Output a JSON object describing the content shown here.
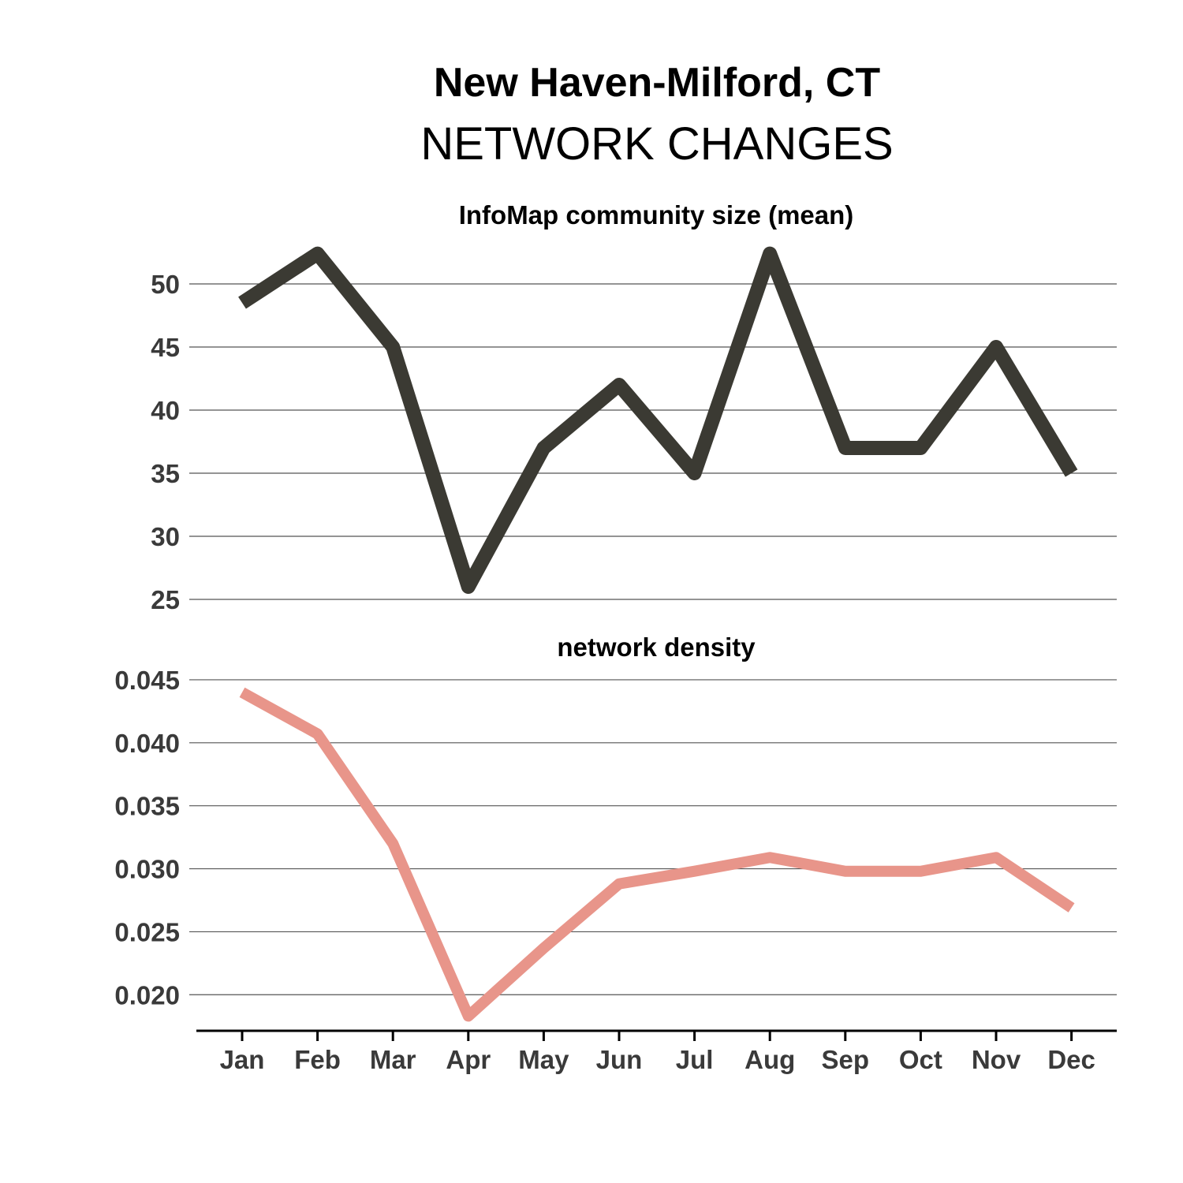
{
  "title": "New Haven-Milford, CT",
  "subtitle": "NETWORK CHANGES",
  "colors": {
    "community_line": "#3b3a33",
    "density_line": "#e8958a"
  },
  "chart_data": [
    {
      "type": "line",
      "title": "InfoMap community size (mean)",
      "categories": [
        "Jan",
        "Feb",
        "Mar",
        "Apr",
        "May",
        "Jun",
        "Jul",
        "Aug",
        "Sep",
        "Oct",
        "Nov",
        "Dec"
      ],
      "values": [
        48.5,
        52.4,
        45.0,
        26.0,
        37.0,
        42.0,
        35.0,
        52.4,
        37.0,
        37.0,
        45.0,
        35.0
      ],
      "ylim": [
        25,
        53
      ],
      "yticks": [
        25,
        30,
        35,
        40,
        45,
        50
      ],
      "ytick_labels": [
        "25",
        "30",
        "35",
        "40",
        "45",
        "50"
      ],
      "grid": true
    },
    {
      "type": "line",
      "title": "network density",
      "categories": [
        "Jan",
        "Feb",
        "Mar",
        "Apr",
        "May",
        "Jun",
        "Jul",
        "Aug",
        "Sep",
        "Oct",
        "Nov",
        "Dec"
      ],
      "values": [
        0.044,
        0.0407,
        0.032,
        0.0183,
        0.0237,
        0.0288,
        0.0298,
        0.0309,
        0.0298,
        0.0298,
        0.0309,
        0.0269
      ],
      "ylim": [
        0.0172,
        0.0465
      ],
      "yticks": [
        0.02,
        0.025,
        0.03,
        0.035,
        0.04,
        0.045
      ],
      "ytick_labels": [
        "0.020",
        "0.025",
        "0.030",
        "0.035",
        "0.040",
        "0.045"
      ],
      "grid": true
    }
  ]
}
